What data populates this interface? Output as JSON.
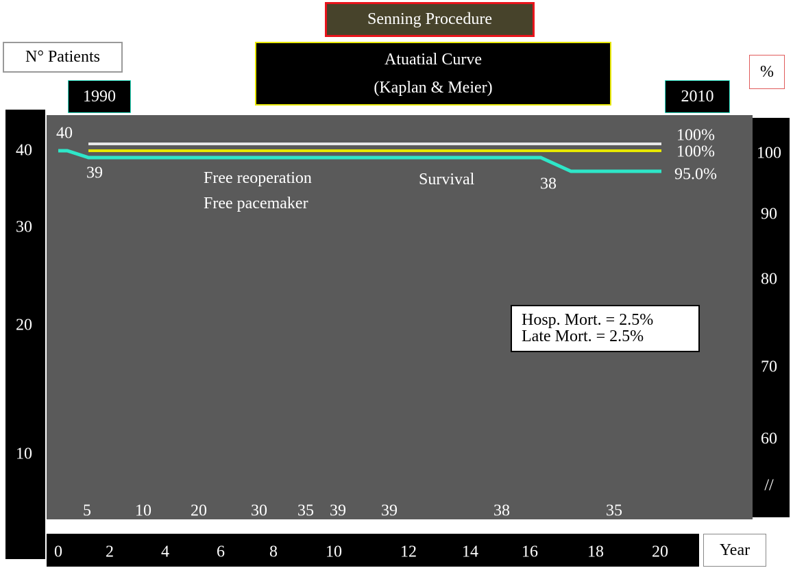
{
  "chart_data": {
    "type": "line",
    "title": "Senning Procedure",
    "subtitle": [
      "Atuatial Curve",
      "(Kaplan & Meier)"
    ],
    "xlabel": "Year",
    "ylabel_left": "N° Patients",
    "ylabel_right": "%",
    "year_start": "1990",
    "year_end": "2010",
    "x_ticks": [
      "0",
      "2",
      "4",
      "6",
      "8",
      "10",
      "12",
      "14",
      "16",
      "18",
      "20"
    ],
    "y_left_ticks": [
      "40",
      "30",
      "20",
      "10"
    ],
    "y_right_ticks": [
      "100",
      "90",
      "80",
      "70",
      "60",
      "//"
    ],
    "xlim": [
      0,
      20
    ],
    "series": [
      {
        "name": "Free reoperation",
        "color": "#e8e8e8",
        "points": [
          [
            1,
            100
          ],
          [
            20,
            100
          ]
        ],
        "end_label": "100%"
      },
      {
        "name": "Free pacemaker",
        "color": "#e8e800",
        "points": [
          [
            1,
            100
          ],
          [
            20,
            100
          ]
        ],
        "end_label": "100%"
      },
      {
        "name": "Survival",
        "color": "#2ee6c8",
        "points": [
          [
            0,
            100
          ],
          [
            0.3,
            100
          ],
          [
            1,
            97.5
          ],
          [
            16,
            97.5
          ],
          [
            17,
            95
          ],
          [
            20,
            95
          ]
        ],
        "end_label": "95.0%"
      }
    ],
    "point_labels": [
      {
        "year": 0,
        "label": "40"
      },
      {
        "year": 1,
        "label": "39"
      },
      {
        "year": 17,
        "label": "38"
      }
    ],
    "series_labels": [
      "Free reoperation",
      "Free pacemaker",
      "Survival"
    ],
    "patients_at_risk": [
      "5",
      "10",
      "20",
      "30",
      "35",
      "39",
      "39",
      "38",
      "35"
    ],
    "annotation": [
      "Hosp. Mort. = 2.5%",
      "Late Mort. = 2.5%"
    ]
  }
}
